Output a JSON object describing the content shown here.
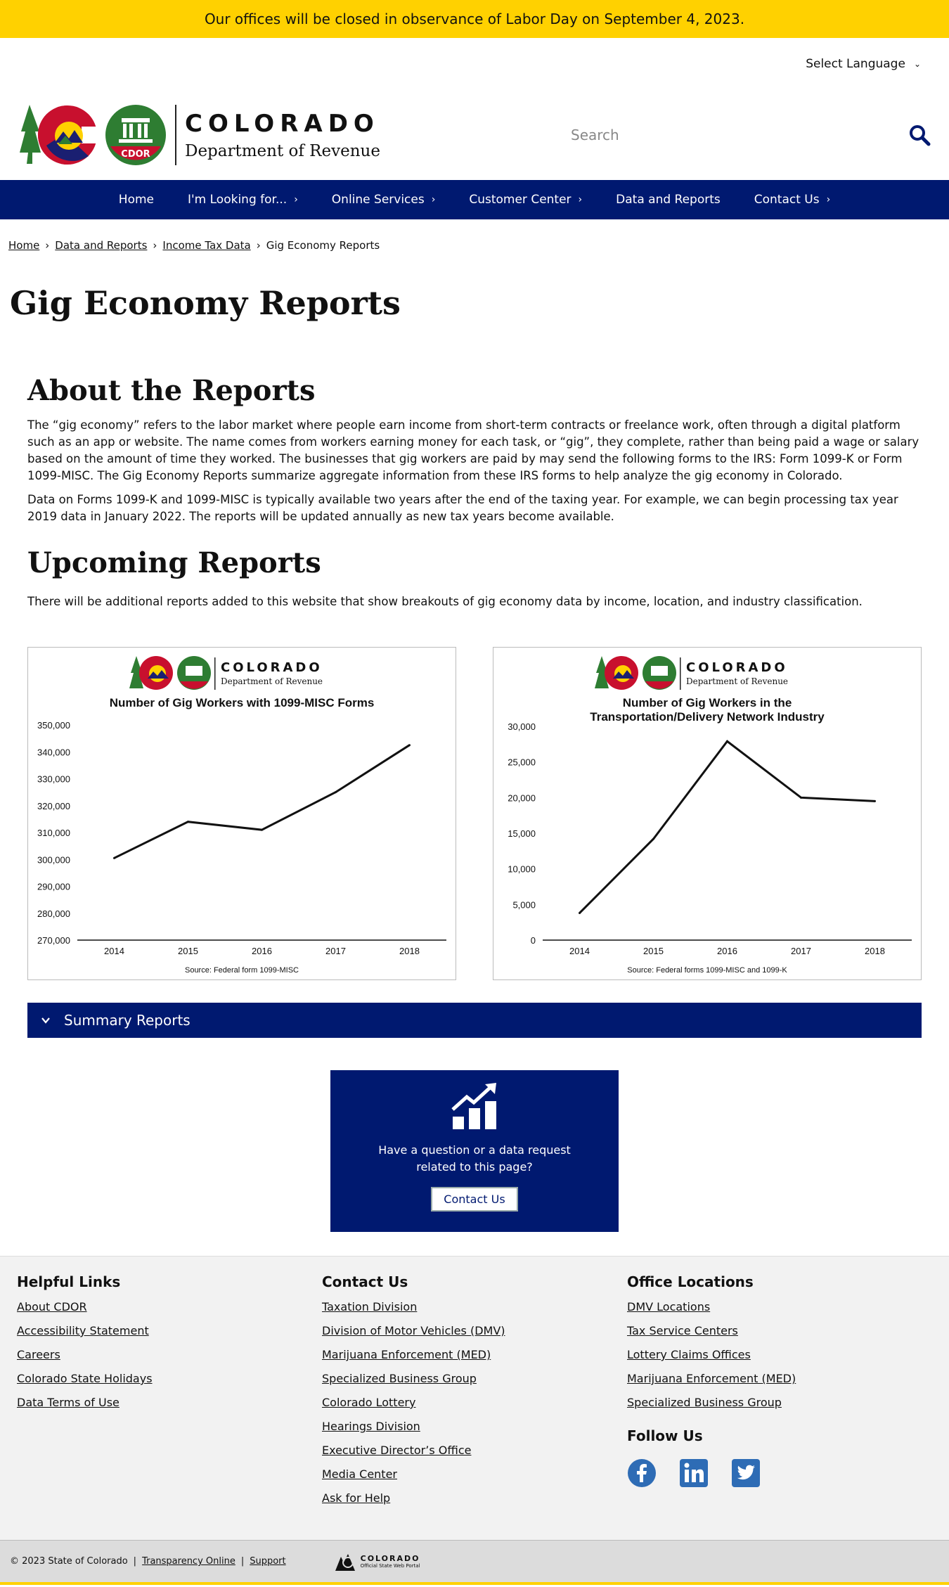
{
  "alert": "Our offices will be closed in observance of Labor Day on September 4, 2023.",
  "language": {
    "label": "Select Language"
  },
  "logo": {
    "state": "COLORADO",
    "dept": "Department of Revenue",
    "seal_text": "CDOR"
  },
  "search": {
    "placeholder": "Search",
    "icon": "search-icon"
  },
  "nav": [
    {
      "label": "Home",
      "caret": ""
    },
    {
      "label": "I'm Looking for...",
      "caret": "›"
    },
    {
      "label": "Online Services",
      "caret": "›"
    },
    {
      "label": "Customer Center",
      "caret": "›"
    },
    {
      "label": "Data and Reports",
      "caret": ""
    },
    {
      "label": "Contact Us",
      "caret": "›"
    }
  ],
  "breadcrumb": {
    "home": "Home",
    "data": "Data and Reports",
    "income": "Income Tax Data",
    "current": "Gig Economy Reports",
    "sep": "›"
  },
  "page_title": "Gig Economy Reports",
  "about": {
    "heading": "About the Reports",
    "p1": "The “gig economy” refers to the labor market where people earn income from short-term contracts or freelance work, often through a digital platform such as an app or website. The name comes from workers earning money for each task, or “gig”, they complete, rather than being paid a wage or salary based on the amount of time they worked. The businesses that gig workers are paid by may send the following forms to the IRS: Form 1099-K or Form 1099-MISC. The Gig Economy Reports summarize aggregate information from these IRS forms to help analyze the gig economy in Colorado.",
    "p2": "Data on Forms 1099-K and 1099-MISC is typically available two years after the end of the taxing year. For example, we can begin processing tax year 2019 data in January 2022. The reports will be updated annually as new tax years become available."
  },
  "upcoming": {
    "heading": "Upcoming Reports",
    "p": "There will be additional reports added to this website that show breakouts of gig economy data by income, location, and industry classification."
  },
  "chart_data": [
    {
      "type": "line",
      "title": "Number of Gig Workers with 1099-MISC Forms",
      "title_lines": [
        "Number of Gig Workers with 1099-MISC Forms"
      ],
      "categories": [
        "2014",
        "2015",
        "2016",
        "2017",
        "2018"
      ],
      "values": [
        300500,
        314000,
        311000,
        325000,
        342500
      ],
      "ylim": [
        270000,
        350000
      ],
      "yticks": [
        270000,
        280000,
        290000,
        300000,
        310000,
        320000,
        330000,
        340000,
        350000
      ],
      "ytick_labels": [
        "270,000",
        "280,000",
        "290,000",
        "300,000",
        "310,000",
        "320,000",
        "330,000",
        "340,000",
        "350,000"
      ],
      "source": "Source: Federal form 1099-MISC",
      "grid": false
    },
    {
      "type": "line",
      "title": "Number of Gig Workers in the Transportation/Delivery Network Industry",
      "title_lines": [
        "Number of Gig Workers in the",
        "Transportation/Delivery Network Industry"
      ],
      "categories": [
        "2014",
        "2015",
        "2016",
        "2017",
        "2018"
      ],
      "values": [
        3800,
        14200,
        27900,
        20000,
        19500
      ],
      "ylim": [
        0,
        30000
      ],
      "yticks": [
        0,
        5000,
        10000,
        15000,
        20000,
        25000,
        30000
      ],
      "ytick_labels": [
        "0",
        "5,000",
        "10,000",
        "15,000",
        "20,000",
        "25,000",
        "30,000"
      ],
      "source": "Source: Federal forms 1099-MISC and 1099-K",
      "grid": false
    }
  ],
  "summary": {
    "label": "Summary Reports",
    "icon": "chevron-down-icon"
  },
  "cta": {
    "text": "Have a question or a data request related to this page?",
    "button": "Contact Us",
    "icon": "chart-growth-icon"
  },
  "footer": {
    "helpful": {
      "heading": "Helpful Links",
      "links": [
        "About CDOR",
        "Accessibility Statement",
        "Careers",
        "Colorado State Holidays",
        "Data Terms of Use"
      ]
    },
    "contact": {
      "heading": "Contact Us",
      "links": [
        "Taxation Division",
        "Division of Motor Vehicles (DMV)",
        "Marijuana Enforcement (MED)",
        "Specialized Business Group",
        "Colorado Lottery",
        "Hearings Division",
        "Executive Director’s Office",
        "Media Center",
        "Ask for Help"
      ]
    },
    "offices": {
      "heading": "Office Locations",
      "links": [
        "DMV Locations",
        "Tax Service Centers",
        "Lottery Claims Offices",
        "Marijuana Enforcement (MED)",
        "Specialized Business Group"
      ]
    },
    "follow": {
      "heading": "Follow Us",
      "icons": [
        "facebook-icon",
        "linkedin-icon",
        "twitter-icon"
      ]
    }
  },
  "bottom": {
    "copyright": "© 2023 State of Colorado",
    "sep": "|",
    "transparency": "Transparency Online",
    "support": "Support",
    "portal_name": "COLORADO",
    "portal_sub": "Official State Web Portal"
  },
  "colors": {
    "brand_navy": "#001970",
    "alert_yellow": "#ffd100",
    "social_blue": "#2e6cb5"
  }
}
